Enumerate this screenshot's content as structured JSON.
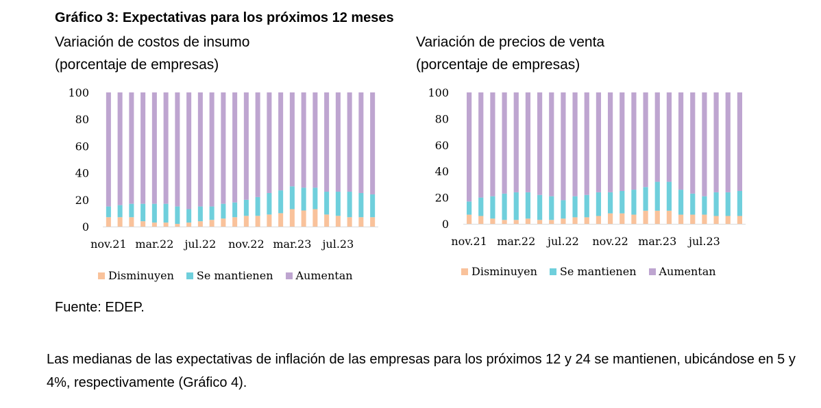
{
  "figure_title": "Gráfico 3: Expectativas para los próximos 12 meses",
  "source": "Fuente: EDEP.",
  "paragraph": "Las medianas de las expectativas de inflación de las empresas para los próximos 12 y 24 se mantienen, ubicándose en 5 y 4%, respectivamente (Gráfico 4).",
  "colors": {
    "Disminuyen": "#f9c29b",
    "Se mantienen": "#6fcfdc",
    "Aumentan": "#bea5d0"
  },
  "chart_data": [
    {
      "type": "bar",
      "stacked": true,
      "title": "Variación de costos de insumo",
      "subtitle": "(porcentaje de empresas)",
      "x_tick_labels": [
        "nov.21",
        "mar.22",
        "jul.22",
        "nov.22",
        "mar.23",
        "jul.23"
      ],
      "ylim": [
        0,
        100
      ],
      "yticks": [
        0,
        20,
        40,
        60,
        80,
        100
      ],
      "legend": "bottom",
      "series": [
        {
          "name": "Disminuyen",
          "values": [
            7,
            7,
            7,
            4,
            3,
            3,
            2,
            3,
            4,
            5,
            6,
            7,
            8,
            8,
            9,
            10,
            13,
            12,
            13,
            9,
            8,
            7,
            7,
            7
          ]
        },
        {
          "name": "Se mantienen",
          "values": [
            8,
            9,
            10,
            13,
            14,
            14,
            13,
            10,
            11,
            10,
            11,
            11,
            12,
            14,
            16,
            17,
            17,
            17,
            16,
            17,
            18,
            19,
            18,
            17
          ]
        },
        {
          "name": "Aumentan",
          "values": [
            85,
            84,
            83,
            83,
            83,
            83,
            85,
            87,
            85,
            85,
            83,
            82,
            80,
            78,
            75,
            73,
            70,
            71,
            71,
            74,
            74,
            74,
            75,
            76
          ]
        }
      ]
    },
    {
      "type": "bar",
      "stacked": true,
      "title": "Variación de precios de venta",
      "subtitle": "(porcentaje de empresas)",
      "x_tick_labels": [
        "nov.21",
        "mar.22",
        "jul.22",
        "nov.22",
        "mar.23",
        "jul.23"
      ],
      "ylim": [
        0,
        100
      ],
      "yticks": [
        0,
        20,
        40,
        60,
        80,
        100
      ],
      "legend": "bottom",
      "series": [
        {
          "name": "Disminuyen",
          "values": [
            7,
            6,
            4,
            3,
            3,
            4,
            3,
            3,
            4,
            5,
            5,
            6,
            8,
            8,
            7,
            10,
            10,
            10,
            7,
            7,
            7,
            6,
            6,
            6
          ]
        },
        {
          "name": "Se mantienen",
          "values": [
            10,
            14,
            17,
            20,
            21,
            20,
            19,
            18,
            14,
            16,
            17,
            18,
            16,
            17,
            19,
            18,
            22,
            22,
            19,
            16,
            14,
            18,
            18,
            19
          ]
        },
        {
          "name": "Aumentan",
          "values": [
            83,
            80,
            79,
            77,
            76,
            76,
            78,
            79,
            82,
            79,
            78,
            76,
            76,
            75,
            74,
            72,
            68,
            68,
            74,
            77,
            79,
            76,
            76,
            75
          ]
        }
      ]
    }
  ]
}
